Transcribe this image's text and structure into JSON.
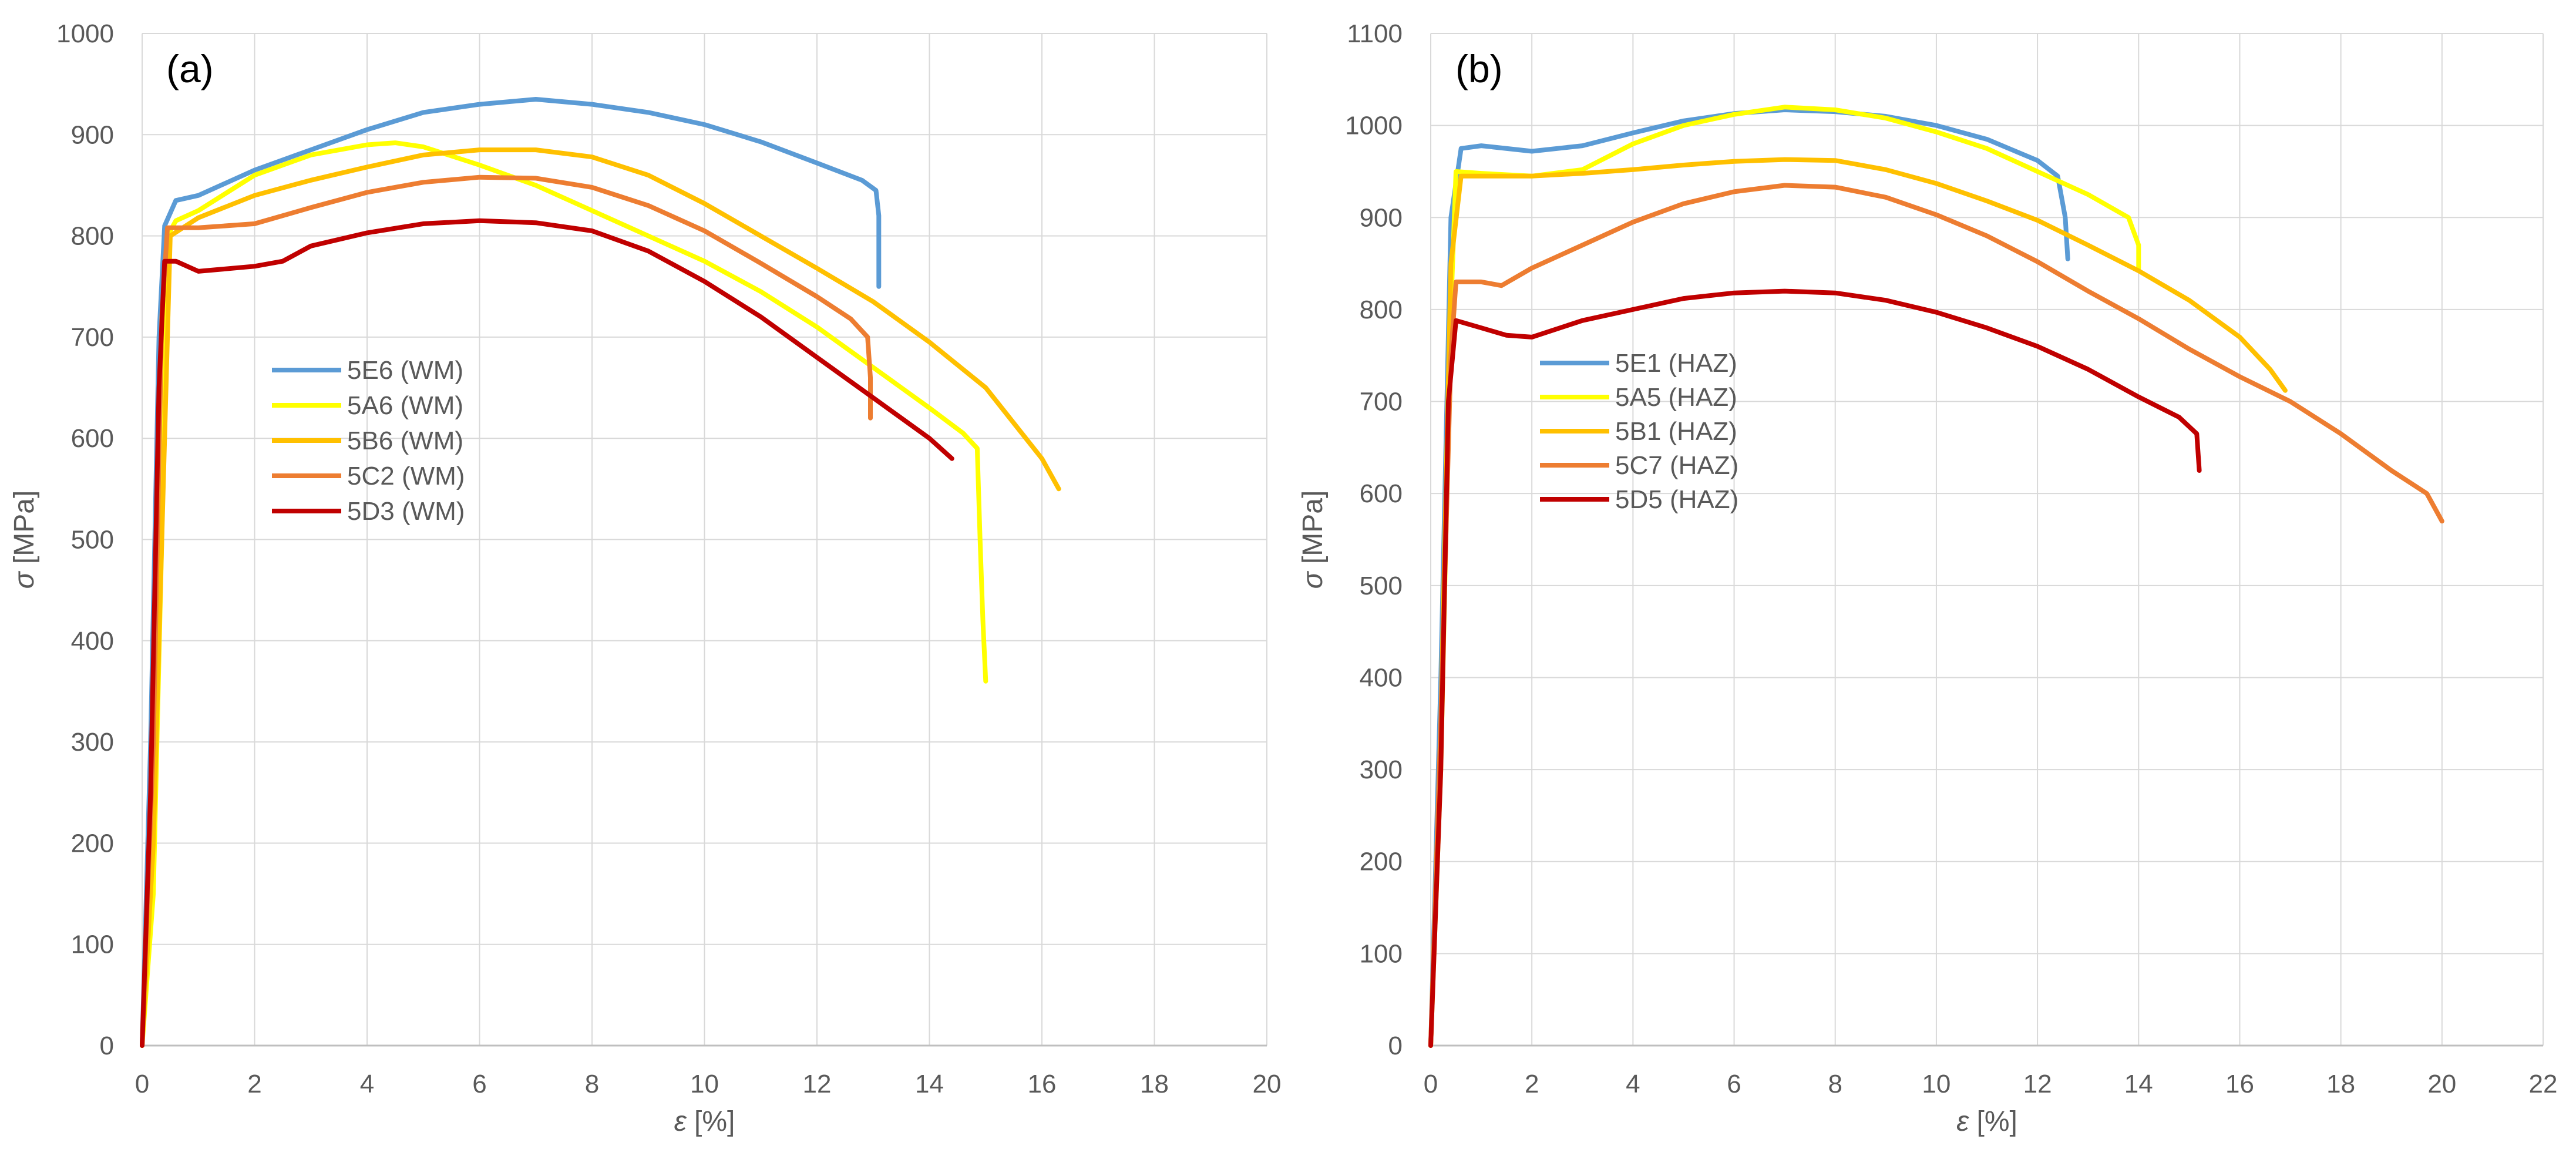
{
  "chart_data": [
    {
      "type": "line",
      "panel_label": "(a)",
      "xlabel_symbol": "ε",
      "xlabel_unit": " [%]",
      "ylabel_symbol": "σ",
      "ylabel_unit": " [MPa]",
      "xlim": [
        0,
        20
      ],
      "ylim": [
        0,
        1000
      ],
      "xticks": [
        0,
        2,
        4,
        6,
        8,
        10,
        12,
        14,
        16,
        18,
        20
      ],
      "yticks": [
        0,
        100,
        200,
        300,
        400,
        500,
        600,
        700,
        800,
        900,
        1000
      ],
      "grid": true,
      "legend_position": "center-left",
      "series": [
        {
          "name": "5E6 (WM)",
          "color": "#5b9bd5",
          "points": [
            [
              0,
              0
            ],
            [
              0.15,
              300
            ],
            [
              0.3,
              700
            ],
            [
              0.4,
              810
            ],
            [
              0.6,
              835
            ],
            [
              1,
              840
            ],
            [
              2,
              865
            ],
            [
              3,
              885
            ],
            [
              4,
              905
            ],
            [
              5,
              922
            ],
            [
              6,
              930
            ],
            [
              7,
              935
            ],
            [
              8,
              930
            ],
            [
              9,
              922
            ],
            [
              10,
              910
            ],
            [
              11,
              893
            ],
            [
              12,
              872
            ],
            [
              12.8,
              855
            ],
            [
              13.05,
              845
            ],
            [
              13.1,
              820
            ],
            [
              13.1,
              750
            ]
          ]
        },
        {
          "name": "5A6 (WM)",
          "color": "#ffff00",
          "points": [
            [
              0,
              0
            ],
            [
              0.2,
              150
            ],
            [
              0.35,
              500
            ],
            [
              0.45,
              800
            ],
            [
              0.6,
              815
            ],
            [
              1,
              825
            ],
            [
              2,
              860
            ],
            [
              3,
              880
            ],
            [
              4,
              890
            ],
            [
              4.5,
              892
            ],
            [
              5,
              888
            ],
            [
              6,
              870
            ],
            [
              7,
              850
            ],
            [
              8,
              825
            ],
            [
              9,
              800
            ],
            [
              10,
              775
            ],
            [
              11,
              745
            ],
            [
              12,
              710
            ],
            [
              13,
              670
            ],
            [
              14,
              630
            ],
            [
              14.6,
              605
            ],
            [
              14.85,
              590
            ],
            [
              14.9,
              500
            ],
            [
              14.95,
              420
            ],
            [
              15,
              360
            ]
          ]
        },
        {
          "name": "5B6 (WM)",
          "color": "#ffc000",
          "points": [
            [
              0,
              0
            ],
            [
              0.2,
              200
            ],
            [
              0.4,
              600
            ],
            [
              0.5,
              800
            ],
            [
              1,
              818
            ],
            [
              2,
              840
            ],
            [
              3,
              855
            ],
            [
              4,
              868
            ],
            [
              5,
              880
            ],
            [
              6,
              885
            ],
            [
              7,
              885
            ],
            [
              8,
              878
            ],
            [
              9,
              860
            ],
            [
              10,
              832
            ],
            [
              11,
              800
            ],
            [
              12,
              768
            ],
            [
              13,
              735
            ],
            [
              14,
              695
            ],
            [
              15,
              650
            ],
            [
              16,
              580
            ],
            [
              16.3,
              550
            ]
          ]
        },
        {
          "name": "5C2 (WM)",
          "color": "#ed7d31",
          "points": [
            [
              0,
              0
            ],
            [
              0.2,
              300
            ],
            [
              0.35,
              720
            ],
            [
              0.45,
              808
            ],
            [
              1,
              808
            ],
            [
              2,
              812
            ],
            [
              3,
              828
            ],
            [
              4,
              843
            ],
            [
              5,
              853
            ],
            [
              6,
              858
            ],
            [
              7,
              857
            ],
            [
              8,
              848
            ],
            [
              9,
              830
            ],
            [
              10,
              805
            ],
            [
              11,
              773
            ],
            [
              12,
              740
            ],
            [
              12.6,
              718
            ],
            [
              12.9,
              700
            ],
            [
              12.95,
              660
            ],
            [
              12.95,
              620
            ]
          ]
        },
        {
          "name": "5D3 (WM)",
          "color": "#c00000",
          "points": [
            [
              0,
              0
            ],
            [
              0.15,
              250
            ],
            [
              0.3,
              650
            ],
            [
              0.4,
              775
            ],
            [
              0.6,
              775
            ],
            [
              1,
              765
            ],
            [
              2,
              770
            ],
            [
              2.5,
              775
            ],
            [
              3,
              790
            ],
            [
              4,
              803
            ],
            [
              5,
              812
            ],
            [
              6,
              815
            ],
            [
              7,
              813
            ],
            [
              8,
              805
            ],
            [
              9,
              785
            ],
            [
              10,
              755
            ],
            [
              11,
              720
            ],
            [
              12,
              680
            ],
            [
              13,
              640
            ],
            [
              14,
              600
            ],
            [
              14.4,
              580
            ]
          ]
        }
      ]
    },
    {
      "type": "line",
      "panel_label": "(b)",
      "xlabel_symbol": "ε",
      "xlabel_unit": " [%]",
      "ylabel_symbol": "σ",
      "ylabel_unit": " [MPa]",
      "xlim": [
        0,
        22
      ],
      "ylim": [
        0,
        1100
      ],
      "xticks": [
        0,
        2,
        4,
        6,
        8,
        10,
        12,
        14,
        16,
        18,
        20,
        22
      ],
      "yticks": [
        0,
        100,
        200,
        300,
        400,
        500,
        600,
        700,
        800,
        900,
        1000,
        1100
      ],
      "grid": true,
      "legend_position": "center-left",
      "series": [
        {
          "name": "5E1 (HAZ)",
          "color": "#5b9bd5",
          "points": [
            [
              0,
              0
            ],
            [
              0.2,
              400
            ],
            [
              0.4,
              900
            ],
            [
              0.6,
              975
            ],
            [
              1,
              978
            ],
            [
              2,
              972
            ],
            [
              3,
              978
            ],
            [
              4,
              992
            ],
            [
              5,
              1005
            ],
            [
              6,
              1013
            ],
            [
              7,
              1017
            ],
            [
              8,
              1015
            ],
            [
              9,
              1010
            ],
            [
              10,
              1000
            ],
            [
              11,
              985
            ],
            [
              12,
              962
            ],
            [
              12.4,
              945
            ],
            [
              12.55,
              900
            ],
            [
              12.6,
              855
            ]
          ]
        },
        {
          "name": "5A5 (HAZ)",
          "color": "#ffff00",
          "points": [
            [
              0,
              0
            ],
            [
              0.2,
              300
            ],
            [
              0.4,
              800
            ],
            [
              0.5,
              950
            ],
            [
              1,
              948
            ],
            [
              2,
              945
            ],
            [
              3,
              952
            ],
            [
              4,
              980
            ],
            [
              5,
              1000
            ],
            [
              6,
              1012
            ],
            [
              7,
              1020
            ],
            [
              8,
              1017
            ],
            [
              9,
              1008
            ],
            [
              10,
              993
            ],
            [
              11,
              975
            ],
            [
              12,
              950
            ],
            [
              13,
              925
            ],
            [
              13.8,
              900
            ],
            [
              14,
              870
            ],
            [
              14,
              845
            ]
          ]
        },
        {
          "name": "5B1 (HAZ)",
          "color": "#ffc000",
          "points": [
            [
              0,
              0
            ],
            [
              0.2,
              350
            ],
            [
              0.4,
              850
            ],
            [
              0.6,
              945
            ],
            [
              1,
              945
            ],
            [
              2,
              945
            ],
            [
              3,
              948
            ],
            [
              4,
              952
            ],
            [
              5,
              957
            ],
            [
              6,
              961
            ],
            [
              7,
              963
            ],
            [
              8,
              962
            ],
            [
              9,
              952
            ],
            [
              10,
              937
            ],
            [
              11,
              918
            ],
            [
              12,
              897
            ],
            [
              13,
              870
            ],
            [
              14,
              842
            ],
            [
              15,
              810
            ],
            [
              16,
              770
            ],
            [
              16.6,
              735
            ],
            [
              16.9,
              712
            ]
          ]
        },
        {
          "name": "5C7 (HAZ)",
          "color": "#ed7d31",
          "points": [
            [
              0,
              0
            ],
            [
              0.2,
              350
            ],
            [
              0.4,
              750
            ],
            [
              0.5,
              830
            ],
            [
              1,
              830
            ],
            [
              1.4,
              826
            ],
            [
              2,
              845
            ],
            [
              3,
              870
            ],
            [
              4,
              895
            ],
            [
              5,
              915
            ],
            [
              6,
              928
            ],
            [
              7,
              935
            ],
            [
              8,
              933
            ],
            [
              9,
              922
            ],
            [
              10,
              903
            ],
            [
              11,
              880
            ],
            [
              12,
              852
            ],
            [
              13,
              820
            ],
            [
              14,
              790
            ],
            [
              15,
              757
            ],
            [
              16,
              727
            ],
            [
              17,
              700
            ],
            [
              18,
              665
            ],
            [
              19,
              625
            ],
            [
              19.7,
              600
            ],
            [
              20,
              570
            ]
          ]
        },
        {
          "name": "5D5 (HAZ)",
          "color": "#c00000",
          "points": [
            [
              0,
              0
            ],
            [
              0.2,
              300
            ],
            [
              0.35,
              700
            ],
            [
              0.5,
              788
            ],
            [
              1,
              780
            ],
            [
              1.5,
              772
            ],
            [
              2,
              770
            ],
            [
              3,
              788
            ],
            [
              4,
              800
            ],
            [
              5,
              812
            ],
            [
              6,
              818
            ],
            [
              7,
              820
            ],
            [
              8,
              818
            ],
            [
              9,
              810
            ],
            [
              10,
              797
            ],
            [
              11,
              780
            ],
            [
              12,
              760
            ],
            [
              13,
              735
            ],
            [
              14,
              705
            ],
            [
              14.8,
              683
            ],
            [
              15.15,
              665
            ],
            [
              15.2,
              625
            ]
          ]
        }
      ]
    }
  ]
}
